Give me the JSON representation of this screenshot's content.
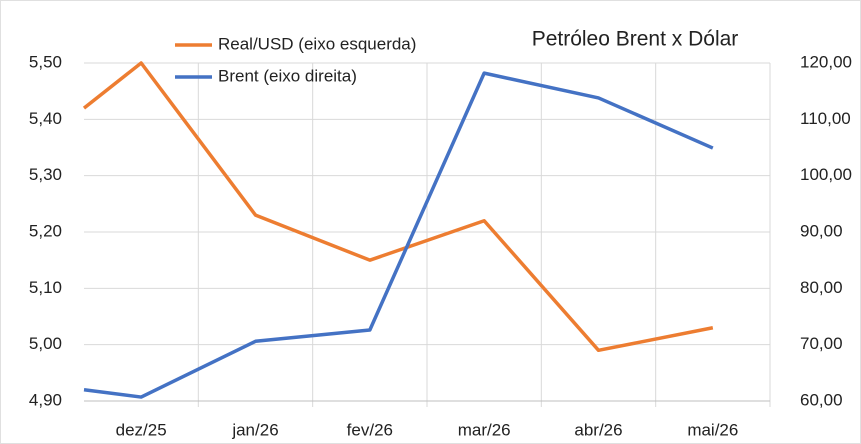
{
  "chart_data": {
    "type": "line",
    "title": "Petróleo Brent x Dólar",
    "categories": [
      null,
      "dez/25",
      "jan/26",
      "fev/26",
      "mar/26",
      "abr/26",
      "mai/26"
    ],
    "series": [
      {
        "name": "Real/USD (eixo esquerda)",
        "color": "#ed7d31",
        "values": [
          5.42,
          5.5,
          5.23,
          5.15,
          5.22,
          4.99,
          5.03
        ]
      },
      {
        "name": "Brent (eixo direita)",
        "color": "#4472c4",
        "axis": "y2",
        "values": [
          62,
          60.7,
          70.6,
          72.6,
          118.2,
          113.8,
          104.9
        ]
      }
    ],
    "ylim": [
      4.9,
      5.5
    ],
    "yticks": [
      {
        "value": 4.9,
        "label": "4,90"
      },
      {
        "value": 5.0,
        "label": "5,00"
      },
      {
        "value": 5.1,
        "label": "5,10"
      },
      {
        "value": 5.2,
        "label": "5,20"
      },
      {
        "value": 5.3,
        "label": "5,30"
      },
      {
        "value": 5.4,
        "label": "5,40"
      },
      {
        "value": 5.5,
        "label": "5,50"
      }
    ],
    "y2lim": [
      60,
      120
    ],
    "y2ticks": [
      {
        "value": 60,
        "label": "60,00"
      },
      {
        "value": 70,
        "label": "70,00"
      },
      {
        "value": 80,
        "label": "80,00"
      },
      {
        "value": 90,
        "label": "90,00"
      },
      {
        "value": 100,
        "label": "100,00"
      },
      {
        "value": 110,
        "label": "110,00"
      },
      {
        "value": 120,
        "label": "120,00"
      }
    ],
    "grid": true
  }
}
